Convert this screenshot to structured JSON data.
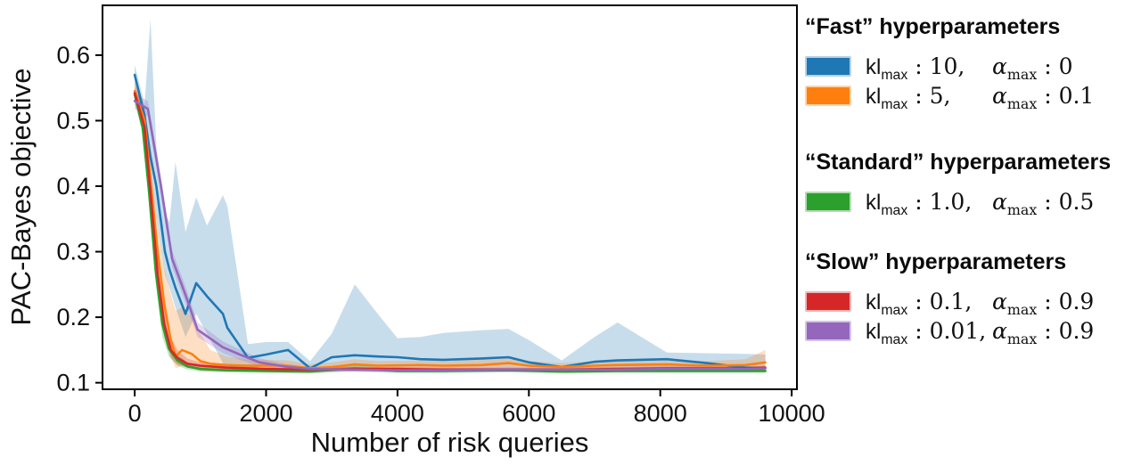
{
  "figure": {
    "xlabel": "Number of risk queries",
    "ylabel": "PAC-Bayes objective"
  },
  "legend": {
    "groups": [
      {
        "title": "“Fast” hyperparameters",
        "items": [
          {
            "kl": "kl",
            "kl_sub": "max",
            "kl_val": " : 10,",
            "alpha": "α",
            "alpha_sub": "max",
            "alpha_val": " : 0"
          },
          {
            "kl": "kl",
            "kl_sub": "max",
            "kl_val": " : 5,",
            "alpha": "α",
            "alpha_sub": "max",
            "alpha_val": " : 0.1"
          }
        ]
      },
      {
        "title": "“Standard” hyperparameters",
        "items": [
          {
            "kl": "kl",
            "kl_sub": "max",
            "kl_val": " : 1.0,",
            "alpha": "α",
            "alpha_sub": "max",
            "alpha_val": " : 0.5"
          }
        ]
      },
      {
        "title": "“Slow” hyperparameters",
        "items": [
          {
            "kl": "kl",
            "kl_sub": "max",
            "kl_val": " : 0.1,",
            "alpha": "α",
            "alpha_sub": "max",
            "alpha_val": " : 0.9"
          },
          {
            "kl": "kl",
            "kl_sub": "max",
            "kl_val": " : 0.01,",
            "alpha": "α",
            "alpha_sub": "max",
            "alpha_val": " : 0.9"
          }
        ]
      }
    ]
  },
  "chart_data": {
    "type": "line",
    "title": "",
    "xlabel": "Number of risk queries",
    "ylabel": "PAC-Bayes objective",
    "xlim": [
      -490,
      10080
    ],
    "ylim": [
      0.09,
      0.676
    ],
    "x_ticks": [
      0,
      2000,
      4000,
      6000,
      8000,
      10000
    ],
    "y_ticks": [
      0.1,
      0.2,
      0.3,
      0.4,
      0.5,
      0.6
    ],
    "grid": false,
    "legend_position": "right-outside",
    "band_opacity": 0.25,
    "series": [
      {
        "name": "kl_max: 10, alpha_max: 0",
        "color": "#1f77b4",
        "edge": "#b7d0e5",
        "x": [
          0,
          150,
          240,
          330,
          460,
          529,
          620,
          773,
          936,
          1100,
          1343,
          1410,
          1725,
          2000,
          2335,
          2670,
          3000,
          3350,
          3700,
          4000,
          4350,
          4700,
          5280,
          5690,
          6000,
          6500,
          7000,
          7350,
          8100,
          8700,
          9300,
          9600
        ],
        "y": [
          0.57,
          0.508,
          0.445,
          0.4,
          0.3,
          0.273,
          0.245,
          0.205,
          0.252,
          0.232,
          0.205,
          0.184,
          0.138,
          0.143,
          0.15,
          0.122,
          0.139,
          0.142,
          0.14,
          0.139,
          0.136,
          0.135,
          0.137,
          0.139,
          0.131,
          0.124,
          0.132,
          0.134,
          0.136,
          0.13,
          0.123,
          0.122
        ],
        "band_upper": [
          0.585,
          0.525,
          0.655,
          0.46,
          0.36,
          0.345,
          0.437,
          0.33,
          0.383,
          0.34,
          0.386,
          0.37,
          0.159,
          0.162,
          0.162,
          0.133,
          0.175,
          0.25,
          0.205,
          0.168,
          0.17,
          0.176,
          0.18,
          0.182,
          0.165,
          0.134,
          0.17,
          0.192,
          0.146,
          0.145,
          0.144,
          0.143
        ],
        "band_lower": [
          0.556,
          0.47,
          0.41,
          0.35,
          0.265,
          0.245,
          0.215,
          0.17,
          0.205,
          0.175,
          0.13,
          0.125,
          0.121,
          0.126,
          0.128,
          0.118,
          0.121,
          0.122,
          0.121,
          0.121,
          0.121,
          0.121,
          0.122,
          0.122,
          0.121,
          0.118,
          0.121,
          0.122,
          0.123,
          0.121,
          0.119,
          0.119
        ]
      },
      {
        "name": "kl_max: 5, alpha_max: 0.1",
        "color": "#ff7f0e",
        "edge": "#ffd3a8",
        "x": [
          0,
          150,
          250,
          350,
          450,
          550,
          624,
          720,
          868,
          1000,
          1150,
          1400,
          1700,
          2335,
          2670,
          3000,
          3350,
          3700,
          4350,
          4700,
          5280,
          5690,
          6000,
          6500,
          7000,
          7350,
          8100,
          8700,
          9300,
          9600
        ],
        "y": [
          0.545,
          0.5,
          0.4,
          0.3,
          0.22,
          0.165,
          0.14,
          0.15,
          0.144,
          0.133,
          0.129,
          0.127,
          0.126,
          0.126,
          0.122,
          0.124,
          0.128,
          0.126,
          0.127,
          0.126,
          0.127,
          0.13,
          0.126,
          0.124,
          0.126,
          0.127,
          0.128,
          0.126,
          0.127,
          0.131
        ],
        "band_upper": [
          0.558,
          0.52,
          0.43,
          0.335,
          0.275,
          0.235,
          0.21,
          0.215,
          0.2,
          0.175,
          0.15,
          0.14,
          0.136,
          0.134,
          0.128,
          0.131,
          0.136,
          0.133,
          0.134,
          0.133,
          0.135,
          0.14,
          0.133,
          0.13,
          0.133,
          0.135,
          0.136,
          0.133,
          0.136,
          0.15
        ],
        "band_lower": [
          0.532,
          0.48,
          0.37,
          0.265,
          0.185,
          0.14,
          0.122,
          0.126,
          0.122,
          0.118,
          0.117,
          0.117,
          0.117,
          0.118,
          0.116,
          0.117,
          0.12,
          0.119,
          0.12,
          0.119,
          0.119,
          0.121,
          0.119,
          0.118,
          0.119,
          0.119,
          0.12,
          0.119,
          0.119,
          0.122
        ]
      },
      {
        "name": "kl_max: 1.0, alpha_max: 0.5",
        "color": "#2ca02c",
        "edge": "#b4dcb2",
        "x": [
          0,
          120,
          220,
          320,
          420,
          520,
          650,
          800,
          1000,
          1400,
          2000,
          2670,
          3350,
          4000,
          4700,
          5690,
          6500,
          7350,
          8100,
          8700,
          9300,
          9600
        ],
        "y": [
          0.54,
          0.49,
          0.39,
          0.27,
          0.19,
          0.152,
          0.134,
          0.125,
          0.121,
          0.119,
          0.118,
          0.117,
          0.122,
          0.118,
          0.118,
          0.119,
          0.117,
          0.118,
          0.118,
          0.118,
          0.118,
          0.118
        ],
        "band_upper": [
          0.55,
          0.5,
          0.41,
          0.29,
          0.21,
          0.165,
          0.143,
          0.131,
          0.125,
          0.122,
          0.121,
          0.12,
          0.127,
          0.121,
          0.121,
          0.122,
          0.12,
          0.121,
          0.121,
          0.121,
          0.121,
          0.121
        ],
        "band_lower": [
          0.53,
          0.48,
          0.37,
          0.25,
          0.17,
          0.14,
          0.126,
          0.12,
          0.117,
          0.116,
          0.115,
          0.114,
          0.117,
          0.115,
          0.115,
          0.116,
          0.114,
          0.115,
          0.115,
          0.115,
          0.115,
          0.115
        ]
      },
      {
        "name": "kl_max: 0.1, alpha_max: 0.9",
        "color": "#d62728",
        "edge": "#f0b5b5",
        "x": [
          0,
          150,
          250,
          350,
          450,
          550,
          650,
          800,
          1000,
          1400,
          2000,
          2670,
          3350,
          4000,
          4700,
          5690,
          6500,
          7350,
          8100,
          8700,
          9300,
          9600
        ],
        "y": [
          0.542,
          0.49,
          0.38,
          0.265,
          0.19,
          0.15,
          0.138,
          0.129,
          0.126,
          0.123,
          0.121,
          0.12,
          0.121,
          0.121,
          0.12,
          0.12,
          0.12,
          0.121,
          0.122,
          0.122,
          0.122,
          0.123
        ],
        "band_upper": [
          0.555,
          0.51,
          0.41,
          0.295,
          0.215,
          0.17,
          0.15,
          0.137,
          0.131,
          0.127,
          0.124,
          0.123,
          0.124,
          0.124,
          0.123,
          0.123,
          0.123,
          0.124,
          0.125,
          0.125,
          0.125,
          0.126
        ],
        "band_lower": [
          0.529,
          0.47,
          0.35,
          0.235,
          0.17,
          0.138,
          0.128,
          0.123,
          0.121,
          0.119,
          0.118,
          0.117,
          0.118,
          0.118,
          0.117,
          0.117,
          0.117,
          0.118,
          0.119,
          0.119,
          0.119,
          0.12
        ]
      },
      {
        "name": "kl_max: 0.01, alpha_max: 0.9",
        "color": "#9467bd",
        "edge": "#d3c4e5",
        "x": [
          0,
          200,
          400,
          570,
          770,
          957,
          1343,
          1600,
          1900,
          2335,
          2670,
          3350,
          4000,
          4700,
          5690,
          6500,
          7350,
          8100,
          8700,
          9300,
          9600
        ],
        "y": [
          0.53,
          0.518,
          0.4,
          0.289,
          0.235,
          0.181,
          0.154,
          0.143,
          0.131,
          0.124,
          0.121,
          0.12,
          0.119,
          0.119,
          0.12,
          0.12,
          0.12,
          0.121,
          0.121,
          0.121,
          0.122
        ],
        "band_upper": [
          0.542,
          0.53,
          0.414,
          0.302,
          0.248,
          0.192,
          0.163,
          0.151,
          0.137,
          0.128,
          0.124,
          0.123,
          0.122,
          0.122,
          0.123,
          0.122,
          0.123,
          0.124,
          0.124,
          0.124,
          0.125
        ],
        "band_lower": [
          0.518,
          0.506,
          0.386,
          0.276,
          0.222,
          0.17,
          0.145,
          0.135,
          0.125,
          0.12,
          0.118,
          0.117,
          0.116,
          0.116,
          0.117,
          0.118,
          0.117,
          0.118,
          0.118,
          0.118,
          0.119
        ]
      }
    ]
  }
}
